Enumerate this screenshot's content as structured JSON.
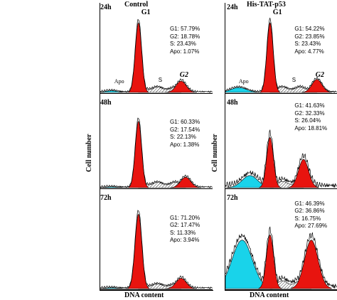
{
  "colors": {
    "g1g2": "#e8140f",
    "apo": "#19d3ea",
    "s_phase_hatch": "#000000",
    "outline": "#000000"
  },
  "left_column": {
    "group": "Control",
    "y_axis_label": "Cell number",
    "x_axis_label": "DNA content"
  },
  "right_column": {
    "group": "His-TAT-p53",
    "y_axis_label": "Cell number",
    "x_axis_label": "DNA content"
  },
  "labels": {
    "g1": "G1",
    "g2": "G2",
    "s": "S",
    "apo": "Apo"
  },
  "chart_data": [
    {
      "type": "area",
      "time": "24h",
      "group": "Control",
      "stats": [
        "G1: 57.79%",
        "G2: 18.78%",
        "S: 23.43%",
        "Apo: 1.07%"
      ],
      "percent": {
        "G1": 57.79,
        "G2": 18.78,
        "S": 23.43,
        "Apo": 1.07
      }
    },
    {
      "type": "area",
      "time": "48h",
      "group": "Control",
      "stats": [
        "G1: 60.33%",
        "G2: 17.54%",
        "S: 22.13%",
        "Apo: 1.38%"
      ],
      "percent": {
        "G1": 60.33,
        "G2": 17.54,
        "S": 22.13,
        "Apo": 1.38
      }
    },
    {
      "type": "area",
      "time": "72h",
      "group": "Control",
      "stats": [
        "G1: 71.20%",
        "G2: 17.47%",
        "S: 11.33%",
        "Apo: 3.94%"
      ],
      "percent": {
        "G1": 71.2,
        "G2": 17.47,
        "S": 11.33,
        "Apo": 3.94
      }
    },
    {
      "type": "area",
      "time": "24h",
      "group": "His-TAT-p53",
      "stats": [
        "G1: 54.22%",
        "G2: 23.85%",
        "S: 23.43%",
        "Apo: 4.77%"
      ],
      "percent": {
        "G1": 54.22,
        "G2": 23.85,
        "S": 23.43,
        "Apo": 4.77
      }
    },
    {
      "type": "area",
      "time": "48h",
      "group": "His-TAT-p53",
      "stats": [
        "G1: 41.63%",
        "G2: 32.33%",
        "S: 26.04%",
        "Apo: 18.81%"
      ],
      "percent": {
        "G1": 41.63,
        "G2": 32.33,
        "S": 26.04,
        "Apo": 18.81
      }
    },
    {
      "type": "area",
      "time": "72h",
      "group": "His-TAT-p53",
      "stats": [
        "G1: 46.39%",
        "G2: 36.86%",
        "S: 16.75%",
        "Apo: 27.69%"
      ],
      "percent": {
        "G1": 46.39,
        "G2": 36.86,
        "S": 16.75,
        "Apo": 27.69
      }
    }
  ]
}
